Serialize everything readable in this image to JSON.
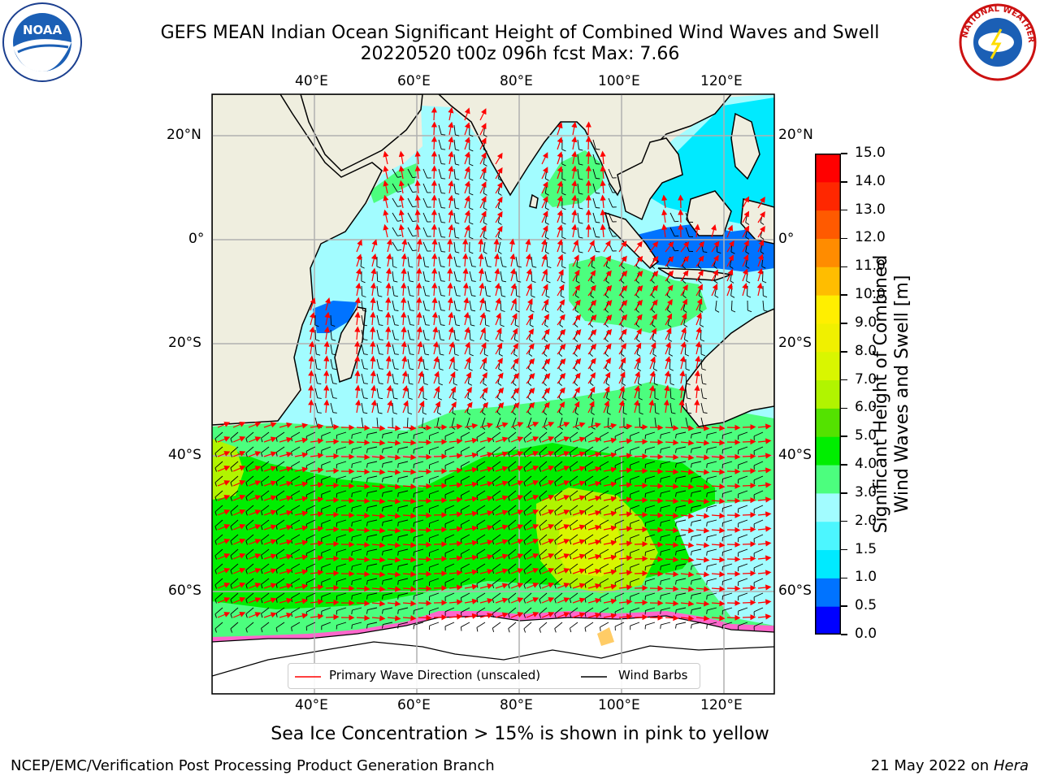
{
  "header": {
    "title_line1": "GEFS MEAN Indian Ocean Significant Height of Combined Wind Waves and Swell",
    "title_line2": "20220520 t00z 096h fcst   Max: 7.66"
  },
  "logos": {
    "left": {
      "text": "NOAA"
    },
    "right": {
      "text": "NATIONAL WEATHER SERVICE"
    }
  },
  "map": {
    "lon_ticks_top": [
      "40°E",
      "60°E",
      "80°E",
      "100°E",
      "120°E"
    ],
    "lon_ticks_bottom": [
      "40°E",
      "60°E",
      "80°E",
      "100°E",
      "120°E"
    ],
    "lat_ticks_left": [
      "20°N",
      "0°",
      "20°S",
      "40°S",
      "60°S"
    ],
    "lat_ticks_right": [
      "20°N",
      "0°",
      "20°S",
      "40°S",
      "60°S"
    ],
    "land_color": "#efeedf",
    "ice_color": "#ffffff",
    "legend": {
      "wave_label": "Primary Wave Direction (unscaled)",
      "wind_label": "Wind Barbs",
      "wave_color": "#ff0000",
      "wind_color": "#000000"
    }
  },
  "colorbar": {
    "label_line1": "Significant Height of Combined",
    "label_line2": "Wind Waves and Swell [m]",
    "ticks": [
      "0.0",
      "0.5",
      "1.0",
      "1.5",
      "2.0",
      "3.0",
      "4.0",
      "5.0",
      "6.0",
      "7.0",
      "8.0",
      "9.0",
      "10.0",
      "11.0",
      "12.0",
      "13.0",
      "14.0",
      "15.0"
    ],
    "colors": [
      "#0000ff",
      "#0073ff",
      "#00eaff",
      "#4cf6ff",
      "#a2fcff",
      "#4cfe7e",
      "#00ee00",
      "#54e200",
      "#b1f400",
      "#d9f600",
      "#f0f000",
      "#ffef00",
      "#ffbd00",
      "#ff8c00",
      "#ff5a00",
      "#ff2700",
      "#ff0000"
    ]
  },
  "footer": {
    "note": "Sea Ice Concentration > 15% is shown in pink to yellow",
    "credit": "NCEP/EMC/Verification Post Processing Product Generation Branch",
    "date": "21 May 2022 on",
    "host": "Hera"
  }
}
